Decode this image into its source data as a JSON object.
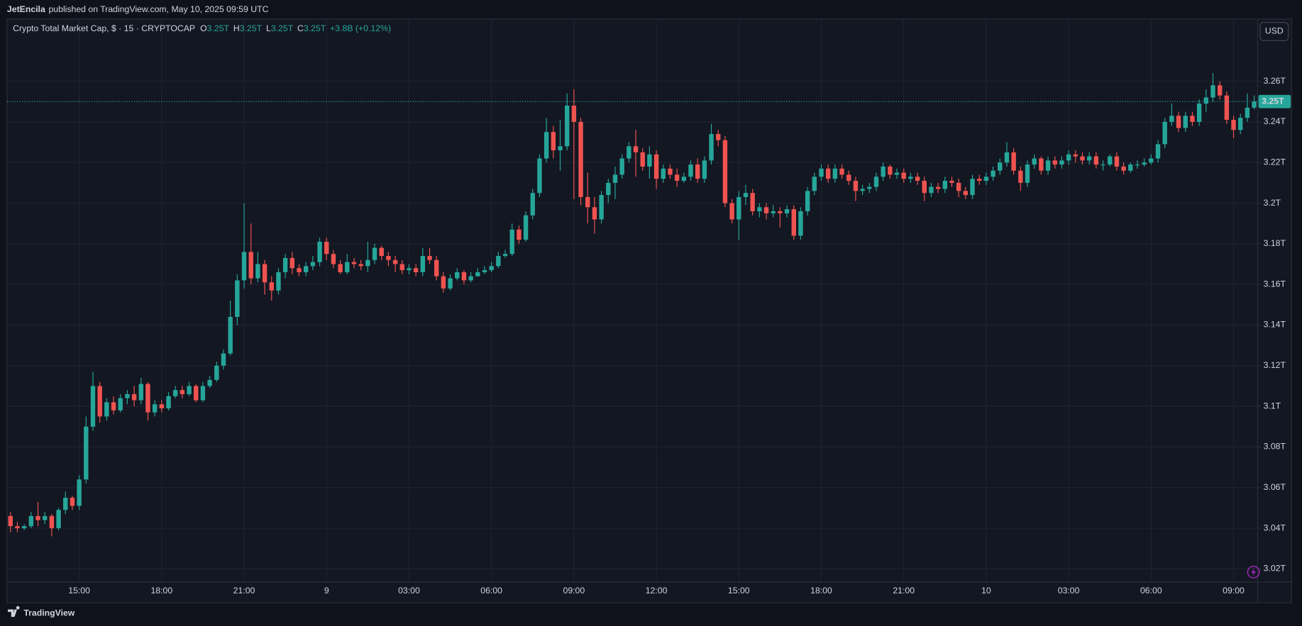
{
  "header": {
    "author": "JetEncila",
    "published": "published on TradingView.com, May 10, 2025 09:59 UTC"
  },
  "footer": {
    "brand": "TradingView"
  },
  "currency_button": "USD",
  "chart_data": {
    "type": "candlestick",
    "title": "Crypto Total Market Cap, $ · 15 · CRYPTOCAP",
    "ohlc_legend": [
      {
        "key": "O",
        "value": "3.25T"
      },
      {
        "key": "H",
        "value": "3.25T"
      },
      {
        "key": "L",
        "value": "3.25T"
      },
      {
        "key": "C",
        "value": "3.25T"
      }
    ],
    "change": "+3.8B (+0.12%)",
    "up_color": "#26a69a",
    "down_color": "#ef5350",
    "grid": true,
    "ylim": [
      3.0135,
      3.2906
    ],
    "yticks": [
      {
        "value": 3.02,
        "label": "3.02T"
      },
      {
        "value": 3.04,
        "label": "3.04T"
      },
      {
        "value": 3.06,
        "label": "3.06T"
      },
      {
        "value": 3.08,
        "label": "3.08T"
      },
      {
        "value": 3.1,
        "label": "3.1T"
      },
      {
        "value": 3.12,
        "label": "3.12T"
      },
      {
        "value": 3.14,
        "label": "3.14T"
      },
      {
        "value": 3.16,
        "label": "3.16T"
      },
      {
        "value": 3.18,
        "label": "3.18T"
      },
      {
        "value": 3.2,
        "label": "3.2T"
      },
      {
        "value": 3.22,
        "label": "3.22T"
      },
      {
        "value": 3.24,
        "label": "3.24T"
      },
      {
        "value": 3.26,
        "label": "3.26T"
      }
    ],
    "last_price": {
      "value": 3.25,
      "label": "3.25T"
    },
    "categories": [
      null,
      null,
      null,
      null,
      null,
      null,
      null,
      null,
      null,
      null,
      "15:00",
      null,
      null,
      null,
      null,
      null,
      null,
      null,
      null,
      null,
      null,
      null,
      "18:00",
      null,
      null,
      null,
      null,
      null,
      null,
      null,
      null,
      null,
      null,
      null,
      "21:00",
      null,
      null,
      null,
      null,
      null,
      null,
      null,
      null,
      null,
      null,
      null,
      "9",
      null,
      null,
      null,
      null,
      null,
      null,
      null,
      null,
      null,
      null,
      null,
      "03:00",
      null,
      null,
      null,
      null,
      null,
      null,
      null,
      null,
      null,
      null,
      null,
      "06:00",
      null,
      null,
      null,
      null,
      null,
      null,
      null,
      null,
      null,
      null,
      null,
      "09:00",
      null,
      null,
      null,
      null,
      null,
      null,
      null,
      null,
      null,
      null,
      null,
      "12:00",
      null,
      null,
      null,
      null,
      null,
      null,
      null,
      null,
      null,
      null,
      null,
      "15:00",
      null,
      null,
      null,
      null,
      null,
      null,
      null,
      null,
      null,
      null,
      null,
      "18:00",
      null,
      null,
      null,
      null,
      null,
      null,
      null,
      null,
      null,
      null,
      null,
      "21:00",
      null,
      null,
      null,
      null,
      null,
      null,
      null,
      null,
      null,
      null,
      null,
      "10",
      null,
      null,
      null,
      null,
      null,
      null,
      null,
      null,
      null,
      null,
      null,
      "03:00",
      null,
      null,
      null,
      null,
      null,
      null,
      null,
      null,
      null,
      null,
      null,
      "06:00",
      null,
      null,
      null,
      null,
      null,
      null,
      null,
      null,
      null,
      null,
      null,
      "09:00",
      null,
      null,
      null
    ],
    "open": [
      3.046,
      3.041,
      3.04,
      3.041,
      3.046,
      3.044,
      3.046,
      3.04,
      3.049,
      3.055,
      3.051,
      3.064,
      3.09,
      3.11,
      3.095,
      3.102,
      3.098,
      3.104,
      3.106,
      3.103,
      3.111,
      3.097,
      3.101,
      3.099,
      3.105,
      3.108,
      3.106,
      3.11,
      3.103,
      3.11,
      3.113,
      3.12,
      3.126,
      3.144,
      3.162,
      3.176,
      3.163,
      3.17,
      3.161,
      3.157,
      3.166,
      3.173,
      3.168,
      3.166,
      3.169,
      3.171,
      3.181,
      3.175,
      3.17,
      3.166,
      3.171,
      3.17,
      3.169,
      3.172,
      3.178,
      3.174,
      3.172,
      3.17,
      3.167,
      3.168,
      3.166,
      3.174,
      3.172,
      3.164,
      3.158,
      3.163,
      3.166,
      3.162,
      3.164,
      3.166,
      3.167,
      3.169,
      3.174,
      3.175,
      3.187,
      3.182,
      3.194,
      3.205,
      3.222,
      3.235,
      3.226,
      3.228,
      3.248,
      3.24,
      3.203,
      3.198,
      3.192,
      3.204,
      3.21,
      3.214,
      3.222,
      3.228,
      3.225,
      3.218,
      3.224,
      3.212,
      3.217,
      3.214,
      3.211,
      3.213,
      3.219,
      3.212,
      3.221,
      3.234,
      3.231,
      3.2,
      3.192,
      3.203,
      3.205,
      3.196,
      3.198,
      3.195,
      3.196,
      3.195,
      3.197,
      3.184,
      3.196,
      3.206,
      3.213,
      3.217,
      3.212,
      3.217,
      3.214,
      3.211,
      3.206,
      3.207,
      3.208,
      3.213,
      3.218,
      3.214,
      3.215,
      3.212,
      3.213,
      3.211,
      3.205,
      3.208,
      3.207,
      3.211,
      3.21,
      3.206,
      3.204,
      3.212,
      3.211,
      3.213,
      3.216,
      3.22,
      3.225,
      3.216,
      3.21,
      3.219,
      3.222,
      3.216,
      3.221,
      3.219,
      3.221,
      3.224,
      3.223,
      3.221,
      3.223,
      3.219,
      3.219,
      3.223,
      3.218,
      3.216,
      3.219,
      3.219,
      3.22,
      3.222,
      3.229,
      3.24,
      3.243,
      3.237,
      3.243,
      3.24,
      3.249,
      3.252,
      3.258,
      3.253,
      3.241,
      3.236,
      3.242,
      3.247
    ],
    "high": [
      3.048,
      3.043,
      3.042,
      3.048,
      3.053,
      3.048,
      3.047,
      3.05,
      3.058,
      3.056,
      3.066,
      3.095,
      3.117,
      3.112,
      3.104,
      3.105,
      3.106,
      3.108,
      3.11,
      3.114,
      3.112,
      3.103,
      3.103,
      3.107,
      3.11,
      3.11,
      3.112,
      3.111,
      3.112,
      3.115,
      3.122,
      3.128,
      3.152,
      3.165,
      3.2,
      3.19,
      3.176,
      3.172,
      3.164,
      3.168,
      3.175,
      3.176,
      3.17,
      3.171,
      3.174,
      3.183,
      3.183,
      3.177,
      3.172,
      3.175,
      3.173,
      3.172,
      3.181,
      3.18,
      3.179,
      3.176,
      3.174,
      3.172,
      3.17,
      3.17,
      3.178,
      3.178,
      3.174,
      3.166,
      3.165,
      3.168,
      3.167,
      3.166,
      3.168,
      3.169,
      3.171,
      3.176,
      3.177,
      3.19,
      3.189,
      3.196,
      3.207,
      3.224,
      3.242,
      3.238,
      3.241,
      3.254,
      3.256,
      3.242,
      3.215,
      3.203,
      3.206,
      3.212,
      3.218,
      3.224,
      3.23,
      3.236,
      3.227,
      3.228,
      3.226,
      3.219,
      3.219,
      3.217,
      3.215,
      3.221,
      3.222,
      3.223,
      3.239,
      3.236,
      3.233,
      3.202,
      3.206,
      3.209,
      3.207,
      3.2,
      3.2,
      3.199,
      3.198,
      3.199,
      3.199,
      3.198,
      3.208,
      3.215,
      3.219,
      3.219,
      3.219,
      3.219,
      3.216,
      3.213,
      3.209,
      3.21,
      3.215,
      3.22,
      3.219,
      3.217,
      3.217,
      3.215,
      3.215,
      3.213,
      3.21,
      3.21,
      3.213,
      3.213,
      3.212,
      3.208,
      3.214,
      3.214,
      3.215,
      3.218,
      3.222,
      3.23,
      3.227,
      3.218,
      3.221,
      3.224,
      3.223,
      3.223,
      3.223,
      3.223,
      3.226,
      3.226,
      3.225,
      3.225,
      3.225,
      3.221,
      3.224,
      3.225,
      3.22,
      3.22,
      3.221,
      3.222,
      3.224,
      3.231,
      3.242,
      3.249,
      3.245,
      3.245,
      3.245,
      3.251,
      3.256,
      3.264,
      3.26,
      3.255,
      3.243,
      3.244,
      3.254,
      3.253
    ],
    "low": [
      3.038,
      3.038,
      3.039,
      3.04,
      3.041,
      3.042,
      3.036,
      3.039,
      3.047,
      3.049,
      3.049,
      3.062,
      3.088,
      3.092,
      3.093,
      3.096,
      3.097,
      3.101,
      3.1,
      3.101,
      3.093,
      3.095,
      3.097,
      3.098,
      3.104,
      3.104,
      3.105,
      3.102,
      3.102,
      3.109,
      3.112,
      3.118,
      3.125,
      3.14,
      3.158,
      3.16,
      3.161,
      3.155,
      3.152,
      3.155,
      3.163,
      3.165,
      3.164,
      3.164,
      3.167,
      3.169,
      3.172,
      3.168,
      3.165,
      3.165,
      3.168,
      3.167,
      3.166,
      3.17,
      3.172,
      3.169,
      3.166,
      3.165,
      3.165,
      3.164,
      3.164,
      3.17,
      3.162,
      3.156,
      3.157,
      3.162,
      3.16,
      3.161,
      3.164,
      3.165,
      3.166,
      3.168,
      3.173,
      3.174,
      3.18,
      3.181,
      3.192,
      3.203,
      3.22,
      3.222,
      3.216,
      3.226,
      3.202,
      3.199,
      3.19,
      3.185,
      3.19,
      3.2,
      3.202,
      3.212,
      3.22,
      3.213,
      3.216,
      3.212,
      3.207,
      3.21,
      3.212,
      3.208,
      3.21,
      3.211,
      3.21,
      3.21,
      3.219,
      3.228,
      3.198,
      3.19,
      3.182,
      3.199,
      3.194,
      3.193,
      3.192,
      3.193,
      3.188,
      3.193,
      3.182,
      3.182,
      3.194,
      3.204,
      3.211,
      3.21,
      3.21,
      3.212,
      3.209,
      3.201,
      3.204,
      3.205,
      3.206,
      3.211,
      3.212,
      3.212,
      3.21,
      3.21,
      3.209,
      3.201,
      3.203,
      3.205,
      3.205,
      3.208,
      3.203,
      3.202,
      3.202,
      3.209,
      3.209,
      3.211,
      3.214,
      3.218,
      3.214,
      3.206,
      3.208,
      3.217,
      3.214,
      3.214,
      3.217,
      3.217,
      3.219,
      3.22,
      3.219,
      3.219,
      3.217,
      3.216,
      3.218,
      3.216,
      3.214,
      3.215,
      3.217,
      3.218,
      3.219,
      3.22,
      3.227,
      3.238,
      3.235,
      3.235,
      3.238,
      3.238,
      3.245,
      3.25,
      3.251,
      3.239,
      3.232,
      3.234,
      3.24,
      3.246
    ],
    "close": [
      3.041,
      3.04,
      3.041,
      3.046,
      3.044,
      3.046,
      3.04,
      3.049,
      3.055,
      3.051,
      3.064,
      3.09,
      3.11,
      3.095,
      3.102,
      3.098,
      3.104,
      3.106,
      3.103,
      3.111,
      3.097,
      3.101,
      3.099,
      3.105,
      3.108,
      3.106,
      3.11,
      3.103,
      3.11,
      3.113,
      3.12,
      3.126,
      3.144,
      3.162,
      3.176,
      3.163,
      3.17,
      3.161,
      3.157,
      3.166,
      3.173,
      3.168,
      3.166,
      3.169,
      3.171,
      3.181,
      3.175,
      3.17,
      3.166,
      3.171,
      3.17,
      3.169,
      3.172,
      3.178,
      3.174,
      3.172,
      3.17,
      3.167,
      3.168,
      3.166,
      3.174,
      3.172,
      3.164,
      3.158,
      3.163,
      3.166,
      3.162,
      3.164,
      3.166,
      3.167,
      3.169,
      3.174,
      3.175,
      3.187,
      3.182,
      3.194,
      3.205,
      3.222,
      3.235,
      3.226,
      3.228,
      3.248,
      3.24,
      3.203,
      3.198,
      3.192,
      3.204,
      3.21,
      3.214,
      3.222,
      3.228,
      3.225,
      3.218,
      3.224,
      3.212,
      3.217,
      3.214,
      3.211,
      3.213,
      3.219,
      3.212,
      3.221,
      3.234,
      3.231,
      3.2,
      3.192,
      3.203,
      3.205,
      3.196,
      3.198,
      3.195,
      3.196,
      3.195,
      3.197,
      3.184,
      3.196,
      3.206,
      3.213,
      3.217,
      3.212,
      3.217,
      3.214,
      3.211,
      3.206,
      3.207,
      3.208,
      3.213,
      3.218,
      3.214,
      3.215,
      3.212,
      3.213,
      3.211,
      3.205,
      3.208,
      3.207,
      3.211,
      3.21,
      3.206,
      3.204,
      3.212,
      3.211,
      3.213,
      3.216,
      3.22,
      3.225,
      3.216,
      3.21,
      3.219,
      3.222,
      3.216,
      3.221,
      3.219,
      3.221,
      3.224,
      3.223,
      3.221,
      3.223,
      3.219,
      3.219,
      3.223,
      3.218,
      3.216,
      3.219,
      3.219,
      3.22,
      3.222,
      3.229,
      3.24,
      3.243,
      3.237,
      3.243,
      3.24,
      3.249,
      3.252,
      3.258,
      3.253,
      3.241,
      3.236,
      3.242,
      3.247,
      3.25
    ]
  }
}
